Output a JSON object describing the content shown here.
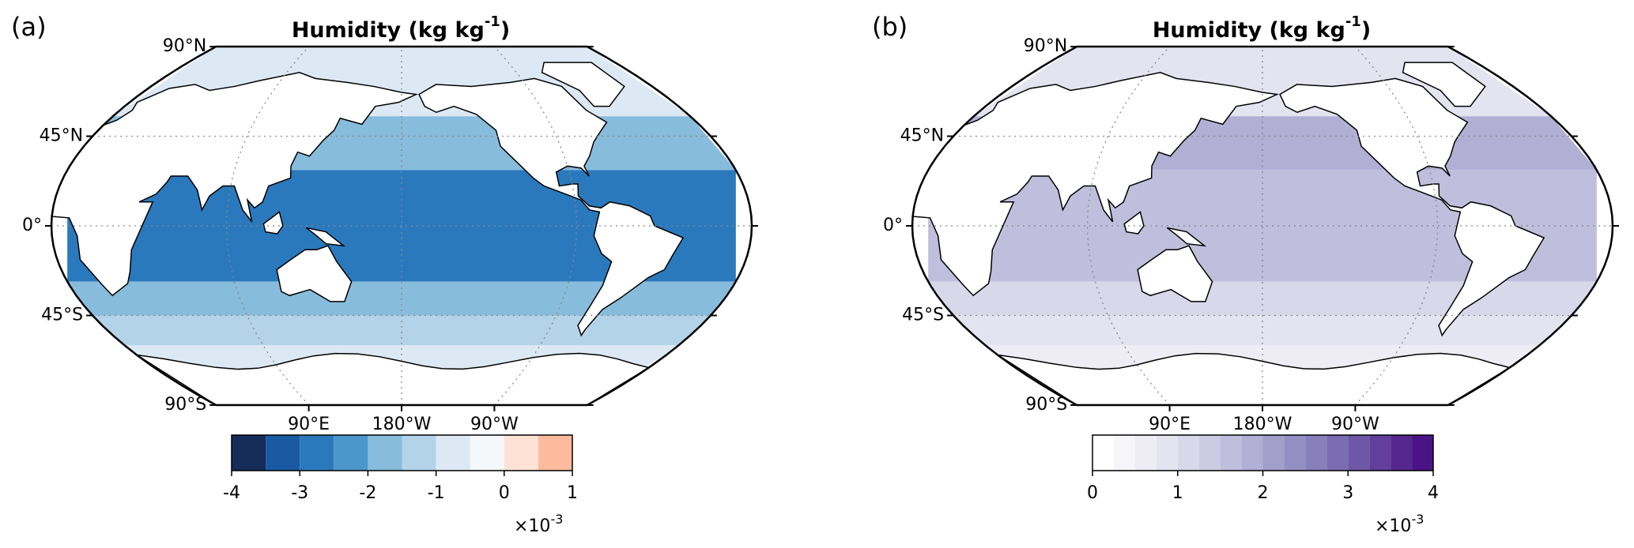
{
  "panels": [
    {
      "label": "(a)",
      "title": "Humidity (kg kg",
      "title_sup": "-1",
      "title_end": ")",
      "lat_labels": [
        "90°N",
        "45°N",
        "0°",
        "45°S",
        "90°S"
      ],
      "lon_labels": [
        "90°E",
        "180°W",
        "90°W"
      ],
      "colorbar": {
        "boundaries": [
          -4,
          -3.5,
          -3,
          -2.5,
          -2,
          -1.5,
          -1,
          -0.5,
          0,
          0.5,
          1
        ],
        "colors": [
          "#142c57",
          "#1a5aa3",
          "#2b79bd",
          "#4b97cc",
          "#88bcdc",
          "#b3d3e9",
          "#dce9f4",
          "#f4f8fb",
          "#fee2d5",
          "#fcbb9e"
        ],
        "ticks": [
          -4,
          -3,
          -2,
          -1,
          0,
          1
        ],
        "offset_base": "×10",
        "offset_exp": "-3"
      }
    },
    {
      "label": "(b)",
      "title": "Humidity (kg kg",
      "title_sup": "-1",
      "title_end": ")",
      "lat_labels": [
        "90°N",
        "45°N",
        "0°",
        "45°S",
        "90°S"
      ],
      "lon_labels": [
        "90°E",
        "180°W",
        "90°W"
      ],
      "colorbar": {
        "boundaries": [
          0,
          0.25,
          0.5,
          0.75,
          1,
          1.25,
          1.5,
          1.75,
          2,
          2.25,
          2.5,
          2.75,
          3,
          3.25,
          3.5,
          3.75,
          4
        ],
        "colors": [
          "#ffffff",
          "#f6f5fa",
          "#eeedf5",
          "#e4e3f0",
          "#d9d8ea",
          "#cccbe3",
          "#bfbedc",
          "#b1afd4",
          "#a39fcb",
          "#9590c3",
          "#8780bb",
          "#7a6db2",
          "#6d57a6",
          "#613f9a",
          "#55278f",
          "#4a1486"
        ],
        "ticks": [
          0,
          1,
          2,
          3,
          4
        ],
        "offset_base": "×10",
        "offset_exp": "-3"
      }
    }
  ]
}
